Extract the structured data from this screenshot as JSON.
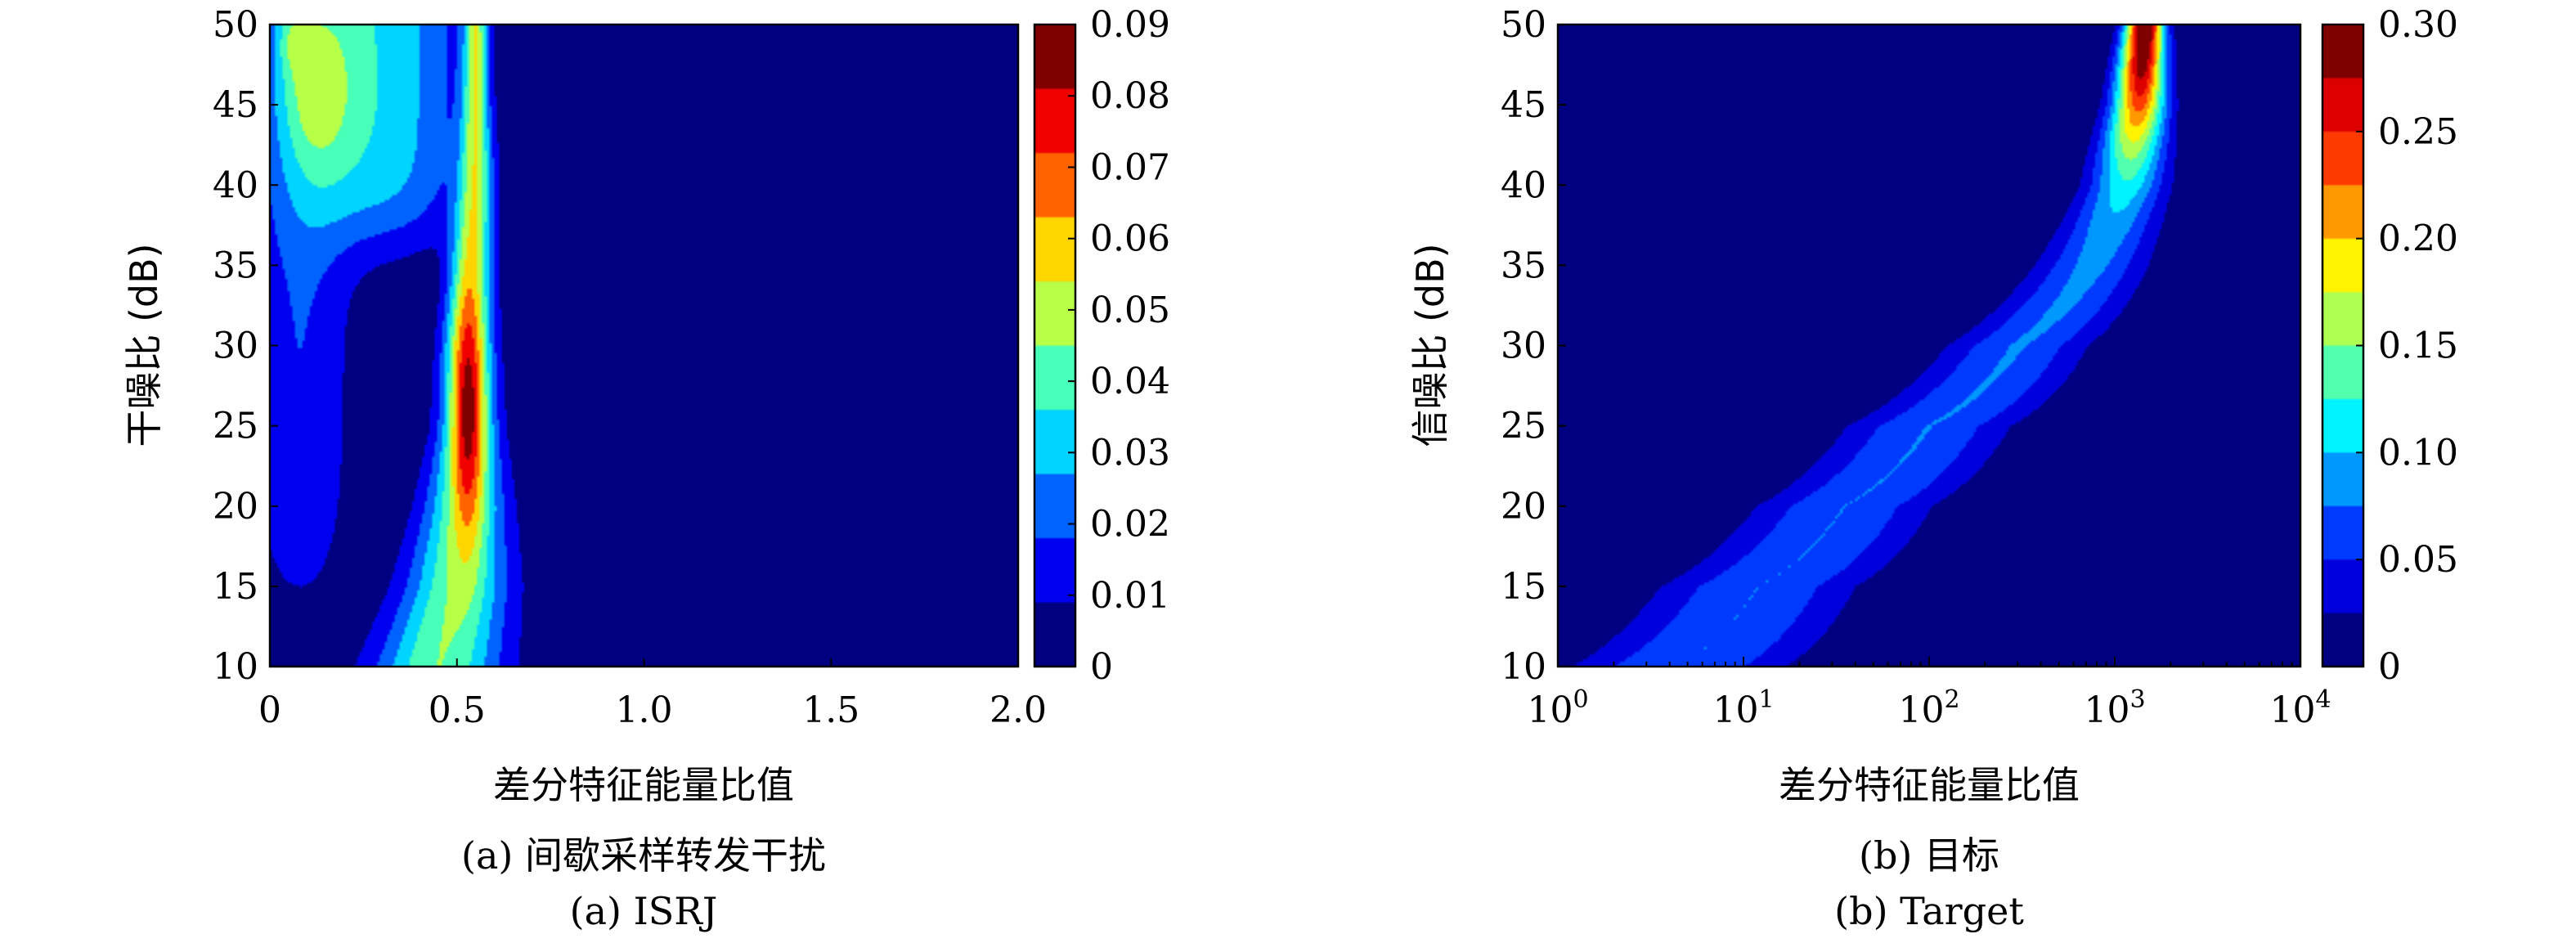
{
  "chart_data": [
    {
      "type": "heatmap",
      "panel": "a",
      "xlabel": "差分特征能量比值",
      "ylabel": "干噪比 (dB)",
      "caption_cn": "(a) 间歇采样转发干扰",
      "caption_en": "(a) ISRJ",
      "xlim": [
        0,
        2.0
      ],
      "ylim": [
        10,
        50
      ],
      "x_ticks": [
        "0",
        "0.5",
        "1.0",
        "1.5",
        "2.0"
      ],
      "x_tick_values": [
        0,
        0.5,
        1.0,
        1.5,
        2.0
      ],
      "y_ticks": [
        "10",
        "15",
        "20",
        "25",
        "30",
        "35",
        "40",
        "45",
        "50"
      ],
      "y_tick_values": [
        10,
        15,
        20,
        25,
        30,
        35,
        40,
        45,
        50
      ],
      "colorbar": {
        "range": [
          0,
          0.09
        ],
        "ticks": [
          "0",
          "0.01",
          "0.02",
          "0.03",
          "0.04",
          "0.05",
          "0.06",
          "0.07",
          "0.08",
          "0.09"
        ],
        "tick_values": [
          0,
          0.01,
          0.02,
          0.03,
          0.04,
          0.05,
          0.06,
          0.07,
          0.08,
          0.09
        ]
      },
      "ridge": [
        {
          "y": 10,
          "center": 0.45,
          "width": 0.17
        },
        {
          "y": 15,
          "center": 0.5,
          "width": 0.14
        },
        {
          "y": 20,
          "center": 0.52,
          "width": 0.11
        },
        {
          "y": 25,
          "center": 0.53,
          "width": 0.08
        },
        {
          "y": 30,
          "center": 0.53,
          "width": 0.07
        },
        {
          "y": 35,
          "center": 0.54,
          "width": 0.055
        },
        {
          "y": 40,
          "center": 0.55,
          "width": 0.045
        },
        {
          "y": 45,
          "center": 0.55,
          "width": 0.035
        },
        {
          "y": 50,
          "center": 0.55,
          "width": 0.03
        }
      ],
      "peak": {
        "x": 0.53,
        "y": 26,
        "value": 0.09
      }
    },
    {
      "type": "heatmap",
      "panel": "b",
      "xlabel": "差分特征能量比值",
      "ylabel": "信噪比 (dB)",
      "caption_cn": "(b) 目标",
      "caption_en": "(b) Target",
      "xscale": "log",
      "xlim": [
        1,
        10000
      ],
      "ylim": [
        10,
        50
      ],
      "x_ticks": [
        {
          "base": "10",
          "exp": "0"
        },
        {
          "base": "10",
          "exp": "1"
        },
        {
          "base": "10",
          "exp": "2"
        },
        {
          "base": "10",
          "exp": "3"
        },
        {
          "base": "10",
          "exp": "4"
        }
      ],
      "x_tick_values": [
        1,
        10,
        100,
        1000,
        10000
      ],
      "y_ticks": [
        "10",
        "15",
        "20",
        "25",
        "30",
        "35",
        "40",
        "45",
        "50"
      ],
      "y_tick_values": [
        10,
        15,
        20,
        25,
        30,
        35,
        40,
        45,
        50
      ],
      "colorbar": {
        "range": [
          0,
          0.3
        ],
        "ticks": [
          "0",
          "0.05",
          "0.10",
          "0.15",
          "0.20",
          "0.25",
          "0.30"
        ],
        "tick_values": [
          0,
          0.05,
          0.1,
          0.15,
          0.2,
          0.25,
          0.3
        ]
      },
      "band": [
        {
          "y": 10,
          "center": 4.5,
          "width_decades": 0.55
        },
        {
          "y": 15,
          "center": 12,
          "width_decades": 0.5
        },
        {
          "y": 20,
          "center": 35,
          "width_decades": 0.45
        },
        {
          "y": 25,
          "center": 100,
          "width_decades": 0.42
        },
        {
          "y": 30,
          "center": 300,
          "width_decades": 0.36
        },
        {
          "y": 35,
          "center": 750,
          "width_decades": 0.28
        },
        {
          "y": 40,
          "center": 1150,
          "width_decades": 0.2
        },
        {
          "y": 45,
          "center": 1350,
          "width_decades": 0.14
        },
        {
          "y": 50,
          "center": 1450,
          "width_decades": 0.1
        }
      ],
      "peak": {
        "x": 1450,
        "y": 50,
        "value": 0.3
      }
    }
  ]
}
